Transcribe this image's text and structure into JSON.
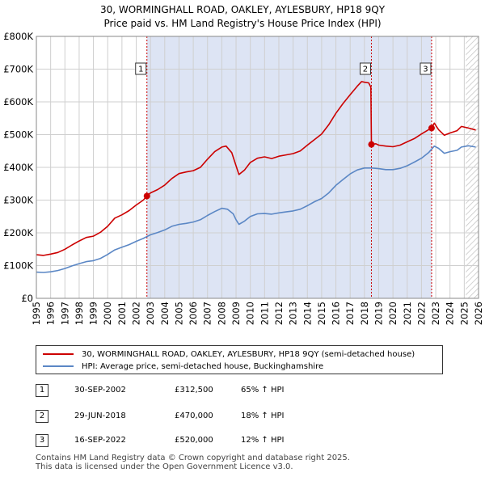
{
  "chart_data": {
    "type": "line",
    "title": "30, WORMINGHALL ROAD, OAKLEY, AYLESBURY, HP18 9QY",
    "subtitle": "Price paid vs. HM Land Registry's House Price Index (HPI)",
    "xlabel": "",
    "ylabel": "",
    "xlim": [
      1995,
      2026
    ],
    "ylim": [
      0,
      800000
    ],
    "grid": true,
    "x_ticks": [
      "1995",
      "1996",
      "1997",
      "1998",
      "1999",
      "2000",
      "2001",
      "2002",
      "2003",
      "2004",
      "2005",
      "2006",
      "2007",
      "2008",
      "2009",
      "2010",
      "2011",
      "2012",
      "2013",
      "2014",
      "2015",
      "2016",
      "2017",
      "2018",
      "2019",
      "2020",
      "2021",
      "2022",
      "2023",
      "2024",
      "2025",
      "2026"
    ],
    "y_ticks": [
      {
        "value": 0,
        "label": "£0"
      },
      {
        "value": 100000,
        "label": "£100K"
      },
      {
        "value": 200000,
        "label": "£200K"
      },
      {
        "value": 300000,
        "label": "£300K"
      },
      {
        "value": 400000,
        "label": "£400K"
      },
      {
        "value": 500000,
        "label": "£500K"
      },
      {
        "value": 600000,
        "label": "£600K"
      },
      {
        "value": 700000,
        "label": "£700K"
      },
      {
        "value": 800000,
        "label": "£800K"
      }
    ],
    "shaded_ranges": [
      {
        "from": 2002.75,
        "to": 2018.49
      },
      {
        "from": 2018.49,
        "to": 2022.71
      }
    ],
    "hatched_from": 2025.1,
    "series": [
      {
        "name": "30, WORMINGHALL ROAD, OAKLEY, AYLESBURY, HP18 9QY (semi-detached house)",
        "color": "#cc0000",
        "points": [
          [
            1995.0,
            133000
          ],
          [
            1995.5,
            131000
          ],
          [
            1996.0,
            135000
          ],
          [
            1996.5,
            140000
          ],
          [
            1997.0,
            150000
          ],
          [
            1997.5,
            163000
          ],
          [
            1998.0,
            175000
          ],
          [
            1998.5,
            186000
          ],
          [
            1999.0,
            190000
          ],
          [
            1999.5,
            202000
          ],
          [
            2000.0,
            220000
          ],
          [
            2000.5,
            245000
          ],
          [
            2001.0,
            255000
          ],
          [
            2001.5,
            268000
          ],
          [
            2002.0,
            285000
          ],
          [
            2002.5,
            300000
          ],
          [
            2002.75,
            312500
          ],
          [
            2003.0,
            322000
          ],
          [
            2003.5,
            332000
          ],
          [
            2004.0,
            346000
          ],
          [
            2004.5,
            366000
          ],
          [
            2005.0,
            381000
          ],
          [
            2005.5,
            386000
          ],
          [
            2006.0,
            390000
          ],
          [
            2006.5,
            400000
          ],
          [
            2007.0,
            425000
          ],
          [
            2007.5,
            448000
          ],
          [
            2008.0,
            462000
          ],
          [
            2008.3,
            465000
          ],
          [
            2008.7,
            445000
          ],
          [
            2009.0,
            405000
          ],
          [
            2009.2,
            378000
          ],
          [
            2009.6,
            392000
          ],
          [
            2010.0,
            415000
          ],
          [
            2010.5,
            428000
          ],
          [
            2011.0,
            432000
          ],
          [
            2011.5,
            427000
          ],
          [
            2012.0,
            434000
          ],
          [
            2012.5,
            438000
          ],
          [
            2013.0,
            442000
          ],
          [
            2013.5,
            450000
          ],
          [
            2014.0,
            468000
          ],
          [
            2014.5,
            485000
          ],
          [
            2015.0,
            502000
          ],
          [
            2015.5,
            530000
          ],
          [
            2016.0,
            565000
          ],
          [
            2016.5,
            595000
          ],
          [
            2017.0,
            622000
          ],
          [
            2017.5,
            648000
          ],
          [
            2017.8,
            662000
          ],
          [
            2018.0,
            660000
          ],
          [
            2018.3,
            658000
          ],
          [
            2018.45,
            645000
          ],
          [
            2018.49,
            470000
          ],
          [
            2018.8,
            472000
          ],
          [
            2019.0,
            468000
          ],
          [
            2019.5,
            465000
          ],
          [
            2020.0,
            463000
          ],
          [
            2020.5,
            468000
          ],
          [
            2021.0,
            478000
          ],
          [
            2021.5,
            488000
          ],
          [
            2022.0,
            502000
          ],
          [
            2022.5,
            515000
          ],
          [
            2022.71,
            520000
          ],
          [
            2022.9,
            535000
          ],
          [
            2023.2,
            515000
          ],
          [
            2023.6,
            498000
          ],
          [
            2024.0,
            505000
          ],
          [
            2024.5,
            512000
          ],
          [
            2024.8,
            525000
          ],
          [
            2025.3,
            520000
          ],
          [
            2025.8,
            514000
          ]
        ]
      },
      {
        "name": "HPI: Average price, semi-detached house, Buckinghamshire",
        "color": "#5b87c5",
        "points": [
          [
            1995.0,
            80000
          ],
          [
            1995.5,
            79000
          ],
          [
            1996.0,
            81000
          ],
          [
            1996.5,
            85000
          ],
          [
            1997.0,
            91000
          ],
          [
            1997.5,
            99000
          ],
          [
            1998.0,
            106000
          ],
          [
            1998.5,
            112000
          ],
          [
            1999.0,
            115000
          ],
          [
            1999.5,
            122000
          ],
          [
            2000.0,
            134000
          ],
          [
            2000.5,
            148000
          ],
          [
            2001.0,
            156000
          ],
          [
            2001.5,
            164000
          ],
          [
            2002.0,
            174000
          ],
          [
            2002.5,
            183000
          ],
          [
            2003.0,
            194000
          ],
          [
            2003.5,
            201000
          ],
          [
            2004.0,
            209000
          ],
          [
            2004.5,
            220000
          ],
          [
            2005.0,
            226000
          ],
          [
            2005.5,
            229000
          ],
          [
            2006.0,
            233000
          ],
          [
            2006.5,
            240000
          ],
          [
            2007.0,
            253000
          ],
          [
            2007.5,
            265000
          ],
          [
            2008.0,
            275000
          ],
          [
            2008.4,
            272000
          ],
          [
            2008.8,
            258000
          ],
          [
            2009.0,
            240000
          ],
          [
            2009.2,
            226000
          ],
          [
            2009.6,
            236000
          ],
          [
            2010.0,
            250000
          ],
          [
            2010.5,
            258000
          ],
          [
            2011.0,
            259000
          ],
          [
            2011.5,
            257000
          ],
          [
            2012.0,
            261000
          ],
          [
            2012.5,
            264000
          ],
          [
            2013.0,
            267000
          ],
          [
            2013.5,
            272000
          ],
          [
            2014.0,
            283000
          ],
          [
            2014.5,
            295000
          ],
          [
            2015.0,
            305000
          ],
          [
            2015.5,
            322000
          ],
          [
            2016.0,
            345000
          ],
          [
            2016.5,
            363000
          ],
          [
            2017.0,
            380000
          ],
          [
            2017.5,
            392000
          ],
          [
            2018.0,
            398000
          ],
          [
            2018.5,
            398000
          ],
          [
            2019.0,
            396000
          ],
          [
            2019.5,
            393000
          ],
          [
            2020.0,
            393000
          ],
          [
            2020.5,
            397000
          ],
          [
            2021.0,
            405000
          ],
          [
            2021.5,
            416000
          ],
          [
            2022.0,
            428000
          ],
          [
            2022.5,
            445000
          ],
          [
            2022.9,
            465000
          ],
          [
            2023.2,
            458000
          ],
          [
            2023.6,
            443000
          ],
          [
            2024.0,
            448000
          ],
          [
            2024.5,
            452000
          ],
          [
            2024.8,
            462000
          ],
          [
            2025.3,
            466000
          ],
          [
            2025.8,
            462000
          ]
        ]
      }
    ],
    "markers": [
      {
        "label": "1",
        "year": 2002.75,
        "value": 312500
      },
      {
        "label": "2",
        "year": 2018.49,
        "value": 470000
      },
      {
        "label": "3",
        "year": 2022.71,
        "value": 520000
      }
    ]
  },
  "sales": [
    {
      "label": "1",
      "date": "30-SEP-2002",
      "price": "£312,500",
      "hpi": "65% ↑ HPI"
    },
    {
      "label": "2",
      "date": "29-JUN-2018",
      "price": "£470,000",
      "hpi": "18% ↑ HPI"
    },
    {
      "label": "3",
      "date": "16-SEP-2022",
      "price": "£520,000",
      "hpi": "12% ↑ HPI"
    }
  ],
  "legend": {
    "property_label": "30, WORMINGHALL ROAD, OAKLEY, AYLESBURY, HP18 9QY (semi-detached house)",
    "hpi_label": "HPI: Average price, semi-detached house, Buckinghamshire"
  },
  "footer": {
    "line1": "Contains HM Land Registry data © Crown copyright and database right 2025.",
    "line2": "This data is licensed under the Open Government Licence v3.0."
  },
  "colors": {
    "property": "#cc0000",
    "hpi": "#5b87c5",
    "shade": "#dde4f4",
    "grid": "#cfcfcf",
    "vline": "#cc0000"
  }
}
